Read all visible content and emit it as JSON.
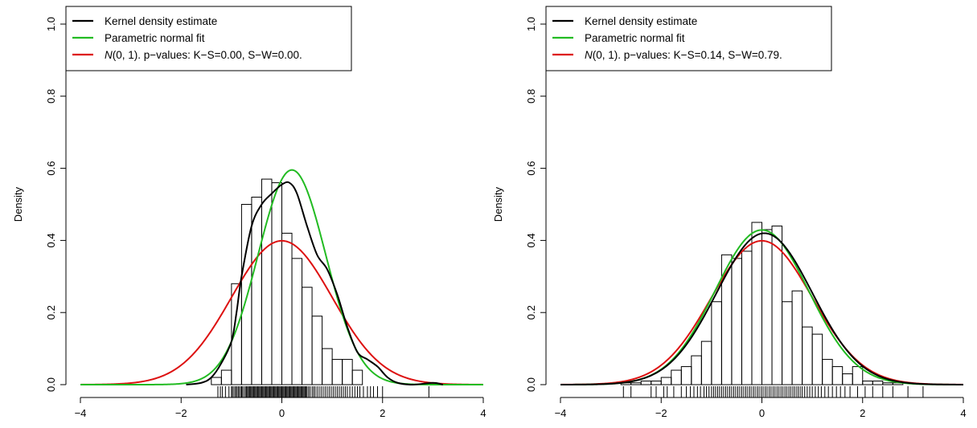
{
  "chart_data": [
    {
      "type": "histogram-density",
      "ylabel": "Density",
      "xlim": [
        -4,
        4
      ],
      "ylim": [
        0,
        1.0
      ],
      "xticks": [
        "−4",
        "−2",
        "0",
        "2",
        "4"
      ],
      "yticks": [
        "0.0",
        "0.2",
        "0.4",
        "0.6",
        "0.8",
        "1.0"
      ],
      "grid": false,
      "legend_position": "top-left",
      "legend": [
        {
          "label": "Kernel density estimate",
          "color": "#000000"
        },
        {
          "label": "Parametric normal fit",
          "color": "#22bb22"
        },
        {
          "label_italic": "N",
          "label": "(0, 1). p−values:  K−S=0.00, S−W=0.00.",
          "color": "#dd1111"
        }
      ],
      "histogram": {
        "bin_start": -1.4,
        "bin_width": 0.2,
        "heights": [
          0.02,
          0.04,
          0.28,
          0.5,
          0.52,
          0.57,
          0.56,
          0.42,
          0.35,
          0.27,
          0.19,
          0.1,
          0.07,
          0.07,
          0.04
        ]
      },
      "kde": [
        [
          -1.9,
          0.0
        ],
        [
          -1.6,
          0.005
        ],
        [
          -1.4,
          0.02
        ],
        [
          -1.2,
          0.06
        ],
        [
          -1.0,
          0.12
        ],
        [
          -0.9,
          0.2
        ],
        [
          -0.8,
          0.3
        ],
        [
          -0.6,
          0.44
        ],
        [
          -0.4,
          0.5
        ],
        [
          -0.2,
          0.53
        ],
        [
          0.0,
          0.555
        ],
        [
          0.15,
          0.56
        ],
        [
          0.3,
          0.53
        ],
        [
          0.5,
          0.44
        ],
        [
          0.7,
          0.36
        ],
        [
          0.9,
          0.32
        ],
        [
          1.1,
          0.25
        ],
        [
          1.3,
          0.16
        ],
        [
          1.5,
          0.09
        ],
        [
          1.7,
          0.07
        ],
        [
          1.9,
          0.05
        ],
        [
          2.1,
          0.02
        ],
        [
          2.3,
          0.005
        ],
        [
          2.6,
          0.0
        ],
        [
          3.0,
          0.005
        ],
        [
          3.2,
          0.0
        ]
      ],
      "normal_fit": {
        "mean": 0.2,
        "sd": 0.67
      },
      "reference": {
        "mean": 0,
        "sd": 1
      },
      "rug": [
        -1.27,
        -1.22,
        -1.18,
        -1.12,
        -1.05,
        -1.0,
        -0.98,
        -0.95,
        -0.92,
        -0.9,
        -0.87,
        -0.85,
        -0.82,
        -0.8,
        -0.78,
        -0.75,
        -0.72,
        -0.7,
        -0.68,
        -0.66,
        -0.64,
        -0.62,
        -0.6,
        -0.58,
        -0.56,
        -0.54,
        -0.52,
        -0.5,
        -0.48,
        -0.46,
        -0.44,
        -0.42,
        -0.4,
        -0.38,
        -0.36,
        -0.34,
        -0.32,
        -0.3,
        -0.28,
        -0.26,
        -0.24,
        -0.22,
        -0.2,
        -0.18,
        -0.16,
        -0.14,
        -0.12,
        -0.1,
        -0.08,
        -0.06,
        -0.04,
        -0.02,
        0.0,
        0.02,
        0.04,
        0.06,
        0.08,
        0.1,
        0.12,
        0.14,
        0.16,
        0.18,
        0.2,
        0.22,
        0.24,
        0.26,
        0.28,
        0.3,
        0.32,
        0.34,
        0.36,
        0.38,
        0.4,
        0.42,
        0.44,
        0.46,
        0.48,
        0.5,
        0.53,
        0.56,
        0.6,
        0.63,
        0.66,
        0.7,
        0.74,
        0.78,
        0.82,
        0.86,
        0.9,
        0.94,
        0.98,
        1.02,
        1.06,
        1.1,
        1.14,
        1.18,
        1.22,
        1.26,
        1.3,
        1.35,
        1.4,
        1.45,
        1.5,
        1.55,
        1.62,
        1.7,
        1.76,
        1.82,
        1.9,
        2.0,
        2.92
      ]
    },
    {
      "type": "histogram-density",
      "ylabel": "Density",
      "xlim": [
        -4,
        4
      ],
      "ylim": [
        0,
        1.0
      ],
      "xticks": [
        "−4",
        "−2",
        "0",
        "2",
        "4"
      ],
      "yticks": [
        "0.0",
        "0.2",
        "0.4",
        "0.6",
        "0.8",
        "1.0"
      ],
      "grid": false,
      "legend_position": "top-left",
      "legend": [
        {
          "label": "Kernel density estimate",
          "color": "#000000"
        },
        {
          "label": "Parametric normal fit",
          "color": "#22bb22"
        },
        {
          "label_italic": "N",
          "label": "(0, 1). p−values:  K−S=0.14, S−W=0.79.",
          "color": "#dd1111"
        }
      ],
      "histogram": {
        "bin_start": -2.8,
        "bin_width": 0.2,
        "heights": [
          0.005,
          0.005,
          0.01,
          0.01,
          0.02,
          0.04,
          0.05,
          0.08,
          0.12,
          0.23,
          0.36,
          0.35,
          0.37,
          0.45,
          0.43,
          0.44,
          0.23,
          0.26,
          0.16,
          0.14,
          0.07,
          0.05,
          0.03,
          0.05,
          0.01,
          0.01,
          0.005,
          0.005
        ]
      },
      "kde": {
        "mean": 0.05,
        "sd": 0.95
      },
      "normal_fit": {
        "mean": 0.0,
        "sd": 0.93
      },
      "reference": {
        "mean": 0,
        "sd": 1
      },
      "rug": [
        -2.75,
        -2.6,
        -2.2,
        -2.1,
        -1.95,
        -1.88,
        -1.75,
        -1.6,
        -1.5,
        -1.42,
        -1.35,
        -1.28,
        -1.22,
        -1.15,
        -1.1,
        -1.05,
        -1.0,
        -0.96,
        -0.92,
        -0.88,
        -0.84,
        -0.8,
        -0.76,
        -0.72,
        -0.68,
        -0.64,
        -0.6,
        -0.56,
        -0.52,
        -0.48,
        -0.44,
        -0.4,
        -0.36,
        -0.32,
        -0.28,
        -0.24,
        -0.2,
        -0.16,
        -0.12,
        -0.08,
        -0.04,
        0.0,
        0.04,
        0.08,
        0.12,
        0.16,
        0.2,
        0.24,
        0.28,
        0.32,
        0.36,
        0.4,
        0.44,
        0.48,
        0.52,
        0.56,
        0.6,
        0.64,
        0.68,
        0.72,
        0.76,
        0.8,
        0.85,
        0.9,
        0.95,
        1.0,
        1.06,
        1.12,
        1.18,
        1.25,
        1.32,
        1.4,
        1.48,
        1.56,
        1.65,
        1.75,
        1.9,
        2.05,
        2.2,
        2.4,
        2.6,
        2.9,
        3.2
      ]
    }
  ]
}
